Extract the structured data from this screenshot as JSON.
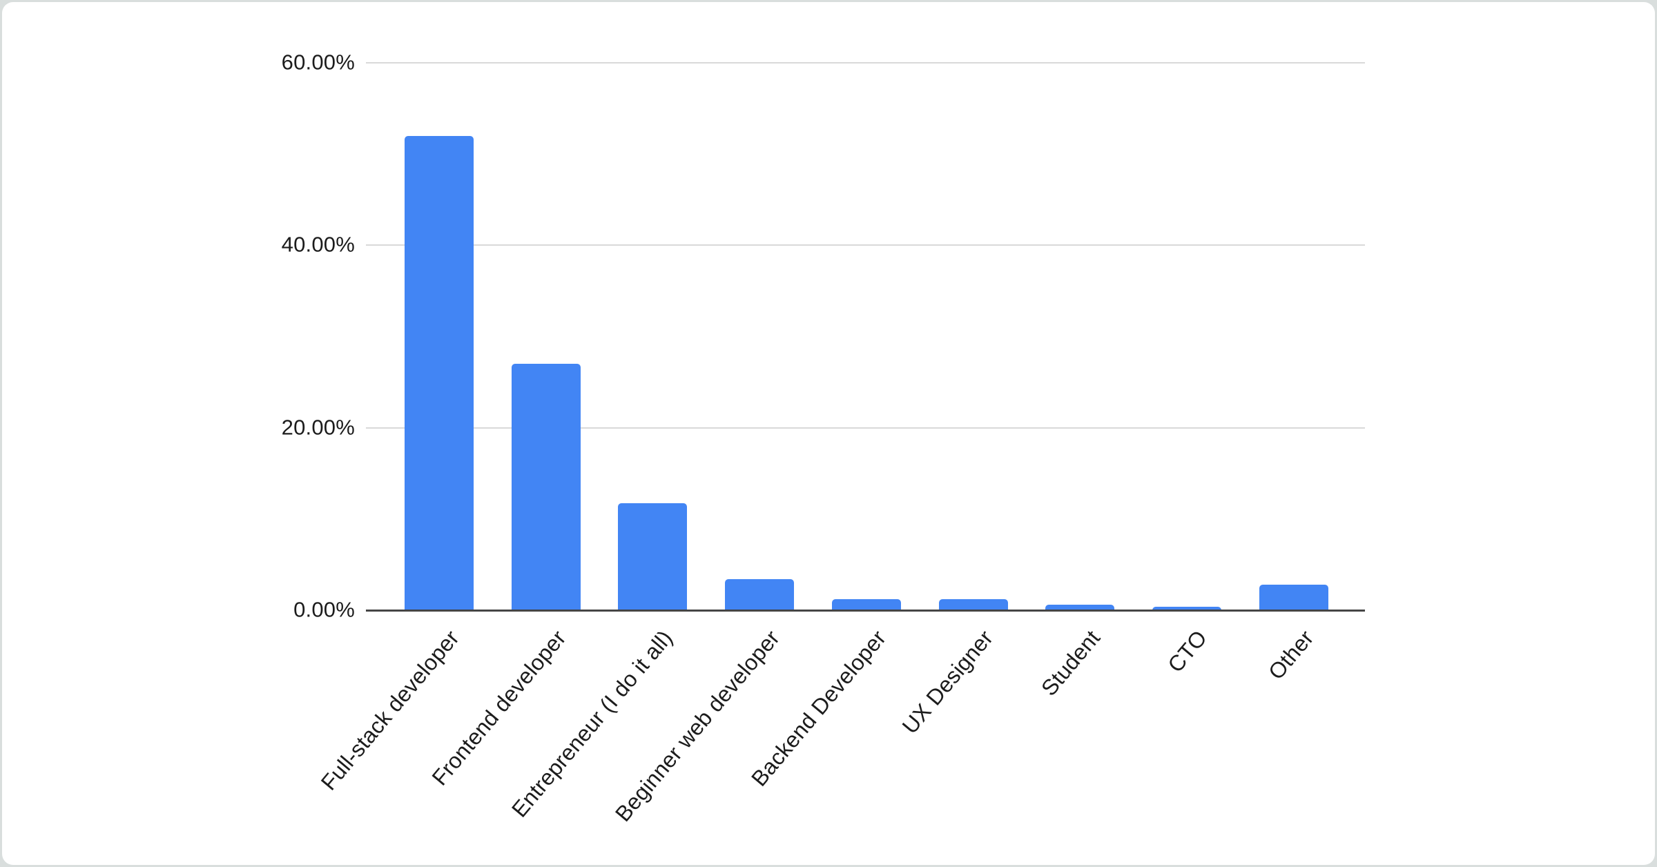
{
  "page": {
    "background_color": "#d9dedd",
    "card_color": "#ffffff"
  },
  "chart_data": {
    "type": "bar",
    "title": "",
    "categories": [
      "Full-stack developer",
      "Frontend developer",
      "Entrepreneur (I do it all)",
      "Beginner web developer",
      "Backend Developer",
      "UX Designer",
      "Student",
      "CTO",
      "Other"
    ],
    "values": [
      52.0,
      27.0,
      11.7,
      3.4,
      1.2,
      1.2,
      0.6,
      0.4,
      2.8
    ],
    "value_unit": "%",
    "xlabel": "",
    "ylabel": "",
    "ylim": [
      0,
      60
    ],
    "y_tick_values": [
      0,
      20,
      40,
      60
    ],
    "y_tick_labels": [
      "0.00%",
      "20.00%",
      "40.00%",
      "60.00%"
    ],
    "grid": true,
    "legend_position": "none",
    "bar_color": "#4285f4",
    "gridline_color": "#d9d9d9",
    "axis_line_color": "#454545",
    "label_color": "#1c1c1c",
    "x_label_rotation_deg": -50
  }
}
